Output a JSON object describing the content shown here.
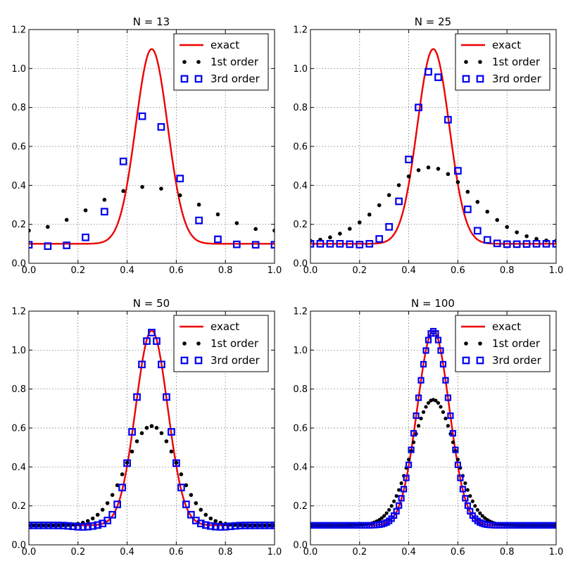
{
  "figure": {
    "xticks": [
      "0.0",
      "0.2",
      "0.4",
      "0.6",
      "0.8",
      "1.0"
    ],
    "yticks": [
      "0.0",
      "0.2",
      "0.4",
      "0.6",
      "0.8",
      "1.0",
      "1.2"
    ],
    "legend": [
      "exact",
      "1st order",
      "3rd order"
    ],
    "colors": {
      "exact": "#ee0000",
      "first_order": "#000000",
      "third_order": "#0000ee"
    }
  },
  "chart_data": [
    {
      "type": "line",
      "title": "N = 13",
      "N": 13,
      "xlim": [
        0,
        1
      ],
      "ylim": [
        0,
        1.2
      ],
      "grid": true,
      "legend_position": "top-right",
      "series": [
        {
          "name": "exact",
          "style": "line",
          "function": "0.1 + exp(-(x-0.5)^2/(2*0.065^2))"
        },
        {
          "name": "1st order",
          "style": "dots",
          "values": [
            0.168,
            0.187,
            0.223,
            0.272,
            0.326,
            0.371,
            0.392,
            0.383,
            0.349,
            0.301,
            0.251,
            0.206,
            0.176,
            0.168
          ]
        },
        {
          "name": "3rd order",
          "style": "squares",
          "values": [
            0.095,
            0.088,
            0.092,
            0.133,
            0.265,
            0.523,
            0.755,
            0.7,
            0.435,
            0.22,
            0.123,
            0.097,
            0.095,
            0.095
          ]
        }
      ]
    },
    {
      "type": "line",
      "title": "N = 25",
      "N": 25,
      "xlim": [
        0,
        1
      ],
      "ylim": [
        0,
        1.2
      ],
      "grid": true,
      "legend_position": "top-right",
      "series": [
        {
          "name": "exact",
          "style": "line",
          "function": "0.1 + exp(-(x-0.5)^2/(2*0.065^2))"
        },
        {
          "name": "1st order",
          "style": "dots",
          "values": [
            0.115,
            0.121,
            0.133,
            0.152,
            0.177,
            0.21,
            0.25,
            0.298,
            0.35,
            0.401,
            0.446,
            0.478,
            0.492,
            0.485,
            0.458,
            0.417,
            0.367,
            0.315,
            0.265,
            0.222,
            0.186,
            0.159,
            0.139,
            0.125,
            0.117,
            0.115
          ]
        },
        {
          "name": "3rd order",
          "style": "squares",
          "values": [
            0.1,
            0.1,
            0.1,
            0.1,
            0.098,
            0.096,
            0.1,
            0.125,
            0.187,
            0.318,
            0.533,
            0.8,
            0.983,
            0.955,
            0.737,
            0.475,
            0.277,
            0.167,
            0.12,
            0.102,
            0.098,
            0.098,
            0.099,
            0.1,
            0.1,
            0.1
          ]
        }
      ]
    },
    {
      "type": "line",
      "title": "N = 50",
      "N": 50,
      "xlim": [
        0,
        1
      ],
      "ylim": [
        0,
        1.2
      ],
      "grid": true,
      "legend_position": "top-right",
      "series": [
        {
          "name": "exact",
          "style": "line",
          "function": "0.1 + exp(-(x-0.5)^2/(2*0.065^2))"
        },
        {
          "name": "1st order",
          "style": "dots",
          "function": "0.1 + 0.51*exp(-(x-0.5)^2/(2*0.104^2))",
          "points": 51
        },
        {
          "name": "3rd order",
          "style": "squares",
          "function": "0.1 + 0.99*exp(-(x-0.5)^2/(2*0.0665^2)) - 0.008*exp(-(|x-0.5|-0.28)^2/(2*0.04^2))",
          "points": 51
        }
      ]
    },
    {
      "type": "line",
      "title": "N = 100",
      "N": 100,
      "xlim": [
        0,
        1
      ],
      "ylim": [
        0,
        1.2
      ],
      "grid": true,
      "legend_position": "top-right",
      "series": [
        {
          "name": "exact",
          "style": "line",
          "function": "0.1 + exp(-(x-0.5)^2/(2*0.065^2))"
        },
        {
          "name": "1st order",
          "style": "dots",
          "function": "0.1 + 0.645*exp(-(x-0.5)^2/(2*0.088^2))",
          "points": 101
        },
        {
          "name": "3rd order",
          "style": "squares",
          "function": "0.1 + 0.997*exp(-(x-0.5)^2/(2*0.0655^2))",
          "points": 101
        }
      ]
    }
  ]
}
